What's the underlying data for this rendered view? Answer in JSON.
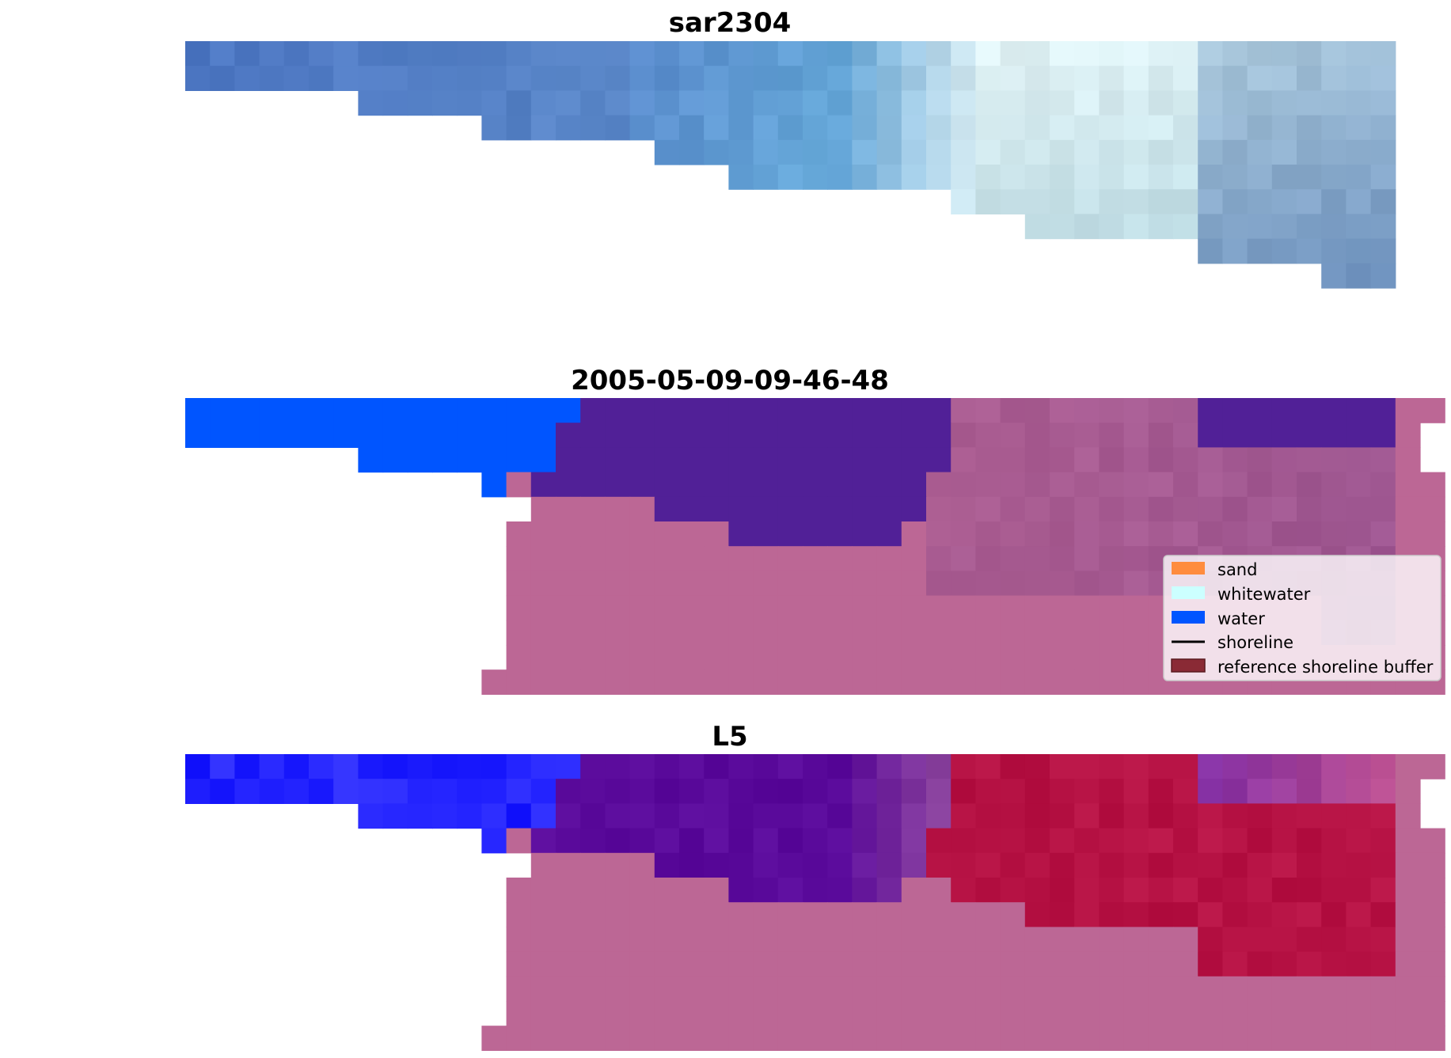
{
  "chart_data": [
    {
      "type": "heatmap",
      "title": "sar2304",
      "xlabel": "",
      "ylabel": "",
      "grid": false,
      "axes_visible": false,
      "description_of_cells": "RGB satellite image tiles (49 columns x 10 rows), blue tones on left transitioning to pale cyan/white and grey-blue on right",
      "palette": [
        "#4f7fc4",
        "#4a73c0",
        "#5a86c9",
        "#6aa6d6",
        "#9fcbe4",
        "#e6f5f7",
        "#c6dde4",
        "#9ab9d2",
        "#7b9ec2"
      ]
    },
    {
      "type": "heatmap",
      "title": "2005-05-09-09-46-48",
      "xlabel": "",
      "ylabel": "",
      "grid": false,
      "axes_visible": false,
      "description_of_cells": "Classified image overlay: water (blue) on left, purple and mauve classes across the rest",
      "palette": [
        "#0055ff",
        "#512097",
        "#bc6795",
        "#9c5590",
        "#a86a99"
      ]
    },
    {
      "type": "heatmap",
      "title": "L5",
      "xlabel": "",
      "ylabel": "",
      "grid": false,
      "axes_visible": false,
      "description_of_cells": "Probability/classification overlay: blue on left, purple in the middle, crimson on the right, mauve buffer below",
      "palette": [
        "#1010ff",
        "#3030ff",
        "#5a0a9a",
        "#b4135a",
        "#bc6795"
      ]
    }
  ],
  "legend": {
    "placement": "lower-right of middle panel",
    "entries": [
      {
        "label": "sand",
        "color": "#ff8c3e",
        "kind": "patch"
      },
      {
        "label": "whitewater",
        "color": "#ccffff",
        "kind": "patch"
      },
      {
        "label": "water",
        "color": "#0055ff",
        "kind": "patch"
      },
      {
        "label": "shoreline",
        "color": "#000000",
        "kind": "line"
      },
      {
        "label": "reference shoreline buffer",
        "color": "#8a2a35",
        "kind": "patch"
      }
    ]
  }
}
